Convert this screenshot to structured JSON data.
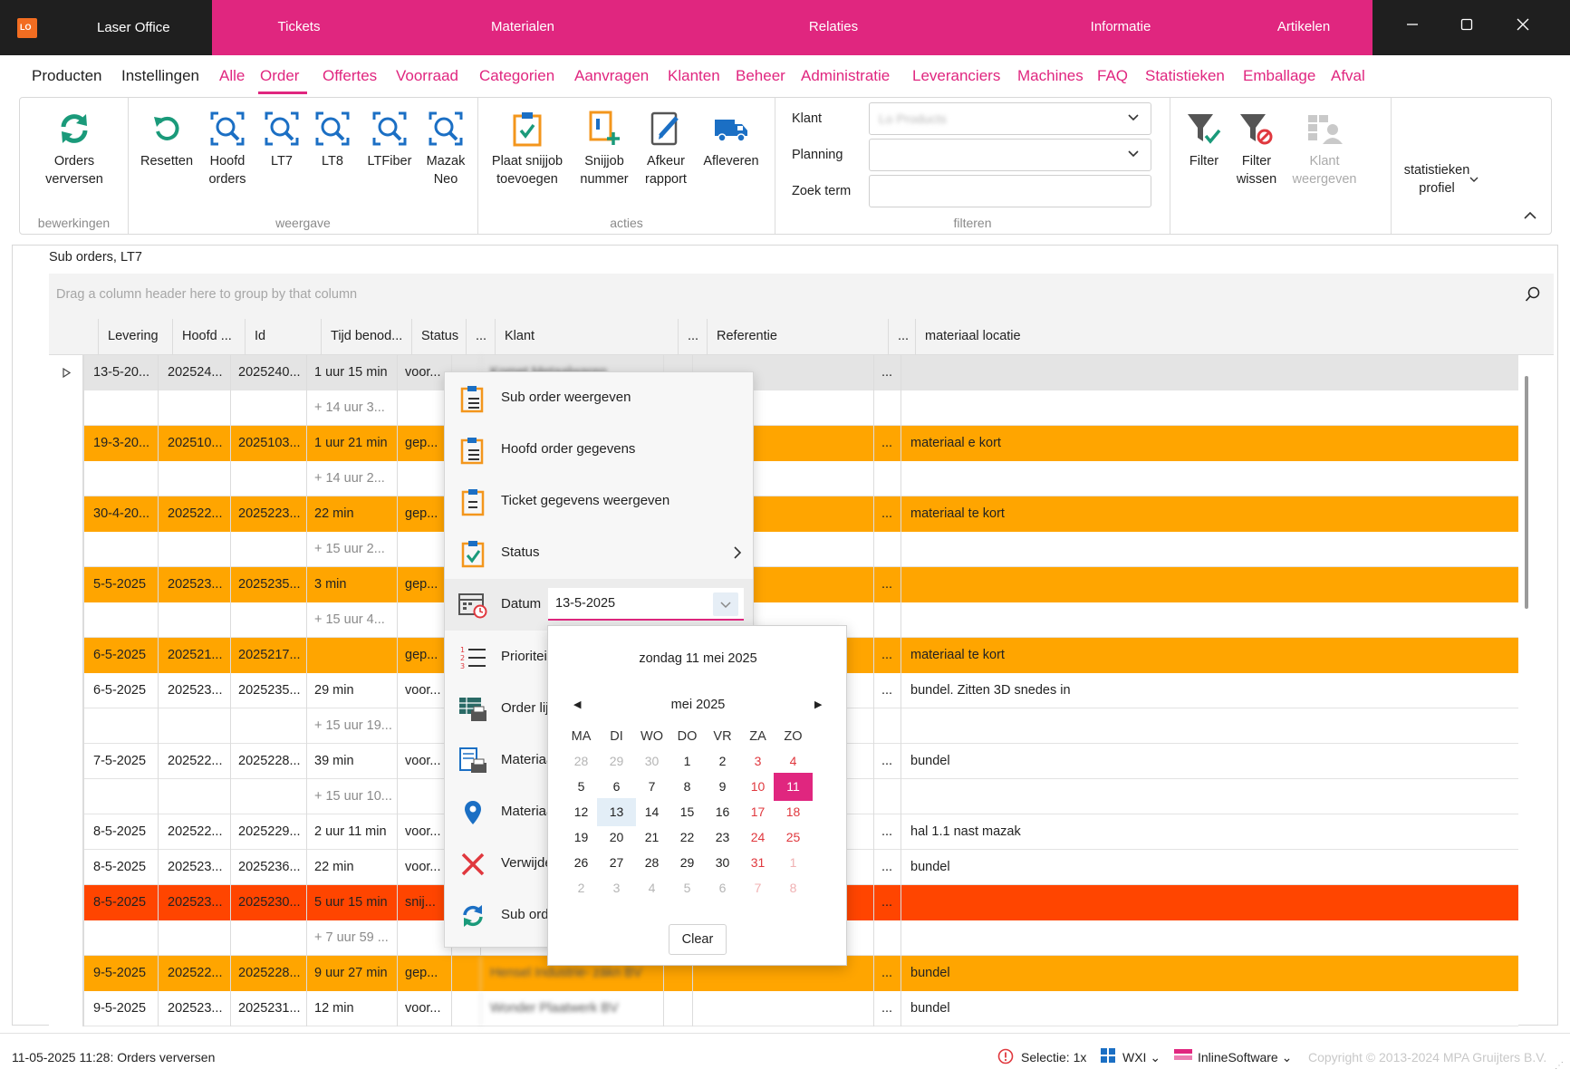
{
  "titlebar": {
    "app_name": "Laser Office",
    "nav": [
      "Tickets",
      "Materialen",
      "Relaties",
      "Informatie",
      "Artikelen"
    ],
    "window_buttons": [
      "minimize-icon",
      "maximize-icon",
      "close-icon"
    ]
  },
  "menu": {
    "items": [
      "Producten",
      "Instellingen",
      "Alle",
      "Order",
      "Offertes",
      "Voorraad",
      "Categorien",
      "Aanvragen",
      "Klanten",
      "Beheer",
      "Administratie",
      "Leveranciers",
      "Machines",
      "FAQ",
      "Statistieken",
      "Emballage",
      "Afval"
    ],
    "active": "Order"
  },
  "ribbon": {
    "groups": {
      "bewerkingen": "bewerkingen",
      "weergave": "weergave",
      "acties": "acties",
      "filteren": "filteren"
    },
    "buttons": {
      "orders_verversen": "Orders verversen",
      "resetten": "Resetten",
      "hoofd_orders": "Hoofd orders",
      "lt7": "LT7",
      "lt8": "LT8",
      "ltfiber": "LTFiber",
      "mazak_neo": "Mazak Neo",
      "plaat_snijjob": "Plaat snijjob toevoegen",
      "snijjob_nummer": "Snijjob nummer",
      "afkeur_rapport": "Afkeur rapport",
      "afleveren": "Afleveren",
      "filter": "Filter",
      "filter_wissen": "Filter wissen",
      "klant_weergeven": "Klant weergeven",
      "statistieken_profiel": "statistieken profiel"
    },
    "filters": {
      "klant_label": "Klant",
      "klant_value": "Lo Products",
      "planning_label": "Planning",
      "planning_value": "",
      "zoekterm_label": "Zoek term",
      "zoekterm_value": ""
    }
  },
  "grid": {
    "title": "Sub orders, LT7",
    "group_hint": "Drag a column header here to group by that column",
    "columns": [
      "Levering",
      "Hoofd ...",
      "Id",
      "Tijd benod...",
      "Status",
      "...",
      "Klant",
      "...",
      "Referentie",
      "...",
      "materiaal locatie"
    ],
    "rows": [
      {
        "style": "grey",
        "levering": "13-5-20...",
        "hoofd": "202524...",
        "id": "2025240...",
        "tijd": "1 uur 15 min",
        "status": "voor...",
        "klant": "Komet Metaalwaren",
        "dots": "...",
        "locatie": ""
      },
      {
        "style": "sub",
        "tijd": "+ 14 uur 3..."
      },
      {
        "style": "orange",
        "levering": "19-3-20...",
        "hoofd": "202510...",
        "id": "2025103...",
        "tijd": "1 uur 21 min",
        "status": "gep...",
        "klant": "",
        "dots": "...",
        "locatie": "materiaal e kort"
      },
      {
        "style": "sub",
        "tijd": "+ 14 uur 2..."
      },
      {
        "style": "orange",
        "levering": "30-4-20...",
        "hoofd": "202522...",
        "id": "2025223...",
        "tijd": "22 min",
        "status": "gep...",
        "klant": "",
        "dots": "...",
        "locatie": "materiaal te kort"
      },
      {
        "style": "sub",
        "tijd": "+ 15 uur 2..."
      },
      {
        "style": "orange",
        "levering": "5-5-2025",
        "hoofd": "202523...",
        "id": "2025235...",
        "tijd": "3 min",
        "status": "gep...",
        "klant": "",
        "dots": "...",
        "locatie": ""
      },
      {
        "style": "sub",
        "tijd": "+ 15 uur 4..."
      },
      {
        "style": "orange",
        "levering": "6-5-2025",
        "hoofd": "202521...",
        "id": "2025217...",
        "tijd": "",
        "status": "gep...",
        "klant": "",
        "dots": "...",
        "locatie": "materiaal te kort"
      },
      {
        "style": "white",
        "levering": "6-5-2025",
        "hoofd": "202523...",
        "id": "2025235...",
        "tijd": "29 min",
        "status": "voor...",
        "klant": "",
        "dots": "...",
        "locatie": "bundel. Zitten 3D snedes in"
      },
      {
        "style": "sub",
        "tijd": "+ 15 uur 19..."
      },
      {
        "style": "white",
        "levering": "7-5-2025",
        "hoofd": "202522...",
        "id": "2025228...",
        "tijd": "39 min",
        "status": "voor...",
        "klant": "",
        "dots": "...",
        "locatie": "bundel"
      },
      {
        "style": "sub",
        "tijd": "+ 15 uur 10..."
      },
      {
        "style": "white",
        "levering": "8-5-2025",
        "hoofd": "202522...",
        "id": "2025229...",
        "tijd": "2 uur 11 min",
        "status": "voor...",
        "klant": "",
        "dots": "...",
        "locatie": "hal 1.1 nast mazak"
      },
      {
        "style": "white",
        "levering": "8-5-2025",
        "hoofd": "202523...",
        "id": "2025236...",
        "tijd": "22 min",
        "status": "voor...",
        "klant": "",
        "dots": "...",
        "locatie": "bundel"
      },
      {
        "style": "red",
        "levering": "8-5-2025",
        "hoofd": "202523...",
        "id": "2025230...",
        "tijd": "5 uur 15 min",
        "status": "snij...",
        "klant": "",
        "dots": "...",
        "locatie": ""
      },
      {
        "style": "sub",
        "tijd": "+ 7 uur 59 ..."
      },
      {
        "style": "orange",
        "levering": "9-5-2025",
        "hoofd": "202522...",
        "id": "2025228...",
        "tijd": "9 uur 27 min",
        "status": "gep...",
        "klant": "Hensel Industrie- zäkn BV",
        "dots": "...",
        "locatie": "bundel"
      },
      {
        "style": "white",
        "levering": "9-5-2025",
        "hoofd": "202523...",
        "id": "2025231...",
        "tijd": "12 min",
        "status": "voor...",
        "klant": "Wonder Plaatwerk BV",
        "dots": "...",
        "locatie": "bundel"
      }
    ]
  },
  "context_menu": {
    "items": [
      {
        "label": "Sub order weergeven",
        "icon": "clipboard-list-icon"
      },
      {
        "label": "Hoofd order gegevens",
        "icon": "clipboard-list-icon"
      },
      {
        "label": "Ticket gegevens weergeven",
        "icon": "clipboard-icon"
      },
      {
        "label": "Status",
        "icon": "clipboard-check-icon"
      },
      {
        "label": "Datum",
        "icon": "calendar-icon"
      },
      {
        "label": "Prioriteit",
        "icon": "numbered-list-icon"
      },
      {
        "label": "Order lijst",
        "icon": "table-print-icon"
      },
      {
        "label": "Materiaal",
        "icon": "document-print-icon"
      },
      {
        "label": "Materiaal",
        "icon": "location-pin-icon"
      },
      {
        "label": "Verwijderen",
        "icon": "red-x-icon"
      },
      {
        "label": "Sub order",
        "icon": "refresh-icon"
      }
    ],
    "date_value": "13-5-2025"
  },
  "calendar": {
    "long_date": "zondag 11 mei 2025",
    "month": "mei 2025",
    "day_headers": [
      "MA",
      "DI",
      "WO",
      "DO",
      "VR",
      "ZA",
      "ZO"
    ],
    "weeks": [
      [
        "28",
        "29",
        "30",
        "1",
        "2",
        "3",
        "4"
      ],
      [
        "5",
        "6",
        "7",
        "8",
        "9",
        "10",
        "11"
      ],
      [
        "12",
        "13",
        "14",
        "15",
        "16",
        "17",
        "18"
      ],
      [
        "19",
        "20",
        "21",
        "22",
        "23",
        "24",
        "25"
      ],
      [
        "26",
        "27",
        "28",
        "29",
        "30",
        "31",
        "1"
      ],
      [
        "2",
        "3",
        "4",
        "5",
        "6",
        "7",
        "8"
      ]
    ],
    "selected": "11",
    "today": "13",
    "clear_label": "Clear"
  },
  "statusbar": {
    "message": "11-05-2025 11:28: Orders verversen",
    "selectie": "Selectie: 1x",
    "wxi": "WXI",
    "inline": "InlineSoftware",
    "copyright": "Copyright © 2013-2024 MPA Gruijters B.V."
  },
  "colors": {
    "accent": "#e0267f",
    "orange_row": "#ffa500",
    "red_row": "#ff4500",
    "icon_green": "#1a9a7a",
    "icon_blue": "#1b6fc4",
    "icon_orange": "#f3961c"
  }
}
